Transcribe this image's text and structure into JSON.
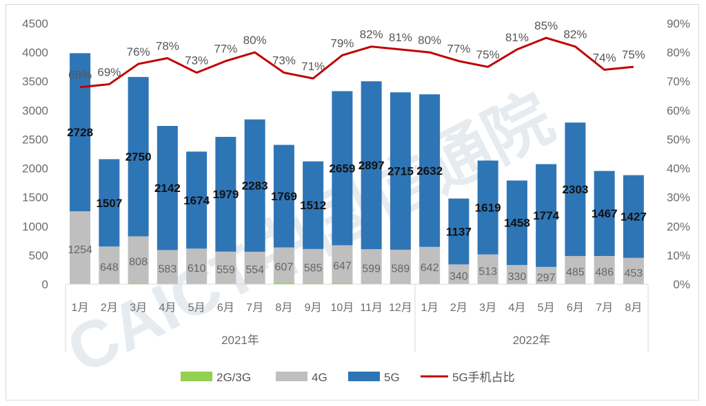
{
  "chart_data": {
    "type": "bar",
    "stacked": true,
    "categories": [
      "1月",
      "2月",
      "3月",
      "4月",
      "5月",
      "6月",
      "7月",
      "8月",
      "9月",
      "10月",
      "11月",
      "12月",
      "1月",
      "2月",
      "3月",
      "4月",
      "5月",
      "6月",
      "7月",
      "8月"
    ],
    "groups": [
      {
        "label": "2021年",
        "count": 12
      },
      {
        "label": "2022年",
        "count": 8
      }
    ],
    "series": [
      {
        "name": "2G/3G",
        "color": "#92d050",
        "values": [
          4,
          2,
          18,
          6,
          4,
          4,
          6,
          28,
          22,
          25,
          5,
          6,
          2,
          1,
          1,
          1,
          1,
          1,
          1,
          1
        ]
      },
      {
        "name": "4G",
        "color": "#bfbfbf",
        "values": [
          1254,
          648,
          808,
          583,
          610,
          559,
          554,
          607,
          585,
          647,
          599,
          589,
          642,
          340,
          513,
          330,
          297,
          485,
          486,
          453
        ]
      },
      {
        "name": "5G",
        "color": "#2e75b6",
        "values": [
          2728,
          1507,
          2750,
          2142,
          1674,
          1979,
          2283,
          1769,
          1512,
          2659,
          2897,
          2715,
          2632,
          1137,
          1619,
          1458,
          1774,
          2303,
          1467,
          1427
        ]
      }
    ],
    "line_series": {
      "name": "5G手机占比",
      "color": "#c00000",
      "values": [
        68,
        69,
        76,
        78,
        73,
        77,
        80,
        73,
        71,
        79,
        82,
        81,
        80,
        77,
        75,
        81,
        85,
        82,
        74,
        75
      ],
      "labels": [
        "68%",
        "69%",
        "76%",
        "78%",
        "73%",
        "77%",
        "80%",
        "73%",
        "71%",
        "79%",
        "82%",
        "81%",
        "80%",
        "77%",
        "75%",
        "81%",
        "85%",
        "82%",
        "74%",
        "75%"
      ]
    },
    "y_left": {
      "min": 0,
      "max": 4500,
      "ticks": [
        "0",
        "500",
        "1000",
        "1500",
        "2000",
        "2500",
        "3000",
        "3500",
        "4000",
        "4500"
      ]
    },
    "y_right": {
      "min": 0,
      "max": 90,
      "ticks": [
        "0%",
        "10%",
        "20%",
        "30%",
        "40%",
        "50%",
        "60%",
        "70%",
        "80%",
        "90%"
      ]
    },
    "legend": {
      "placement": "bottom",
      "items": [
        {
          "label": "2G/3G",
          "kind": "box",
          "color": "#92d050"
        },
        {
          "label": "4G",
          "kind": "box",
          "color": "#bfbfbf"
        },
        {
          "label": "5G",
          "kind": "box",
          "color": "#2e75b6"
        },
        {
          "label": "5G手机占比",
          "kind": "line",
          "color": "#c00000"
        }
      ]
    },
    "grid": false
  },
  "watermark": {
    "text": "CAICT中国信通院"
  }
}
